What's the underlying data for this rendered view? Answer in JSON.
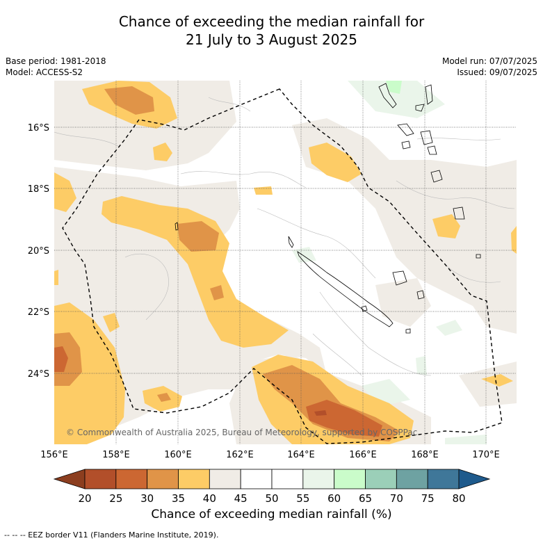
{
  "title": {
    "line1": "Chance of exceeding the median rainfall for",
    "line2": "21 July to 3 August 2025"
  },
  "meta_left": {
    "base_period": "Base period: 1981-2018",
    "model": "Model: ACCESS-S2"
  },
  "meta_right": {
    "model_run": "Model run: 07/07/2025",
    "issued": "Issued: 09/07/2025"
  },
  "map": {
    "lon_range": [
      156,
      171
    ],
    "lat_range": [
      -26.3,
      -14.4
    ],
    "lon_ticks": [
      {
        "value": 156,
        "label": "156°E"
      },
      {
        "value": 158,
        "label": "158°E"
      },
      {
        "value": 160,
        "label": "160°E"
      },
      {
        "value": 162,
        "label": "162°E"
      },
      {
        "value": 164,
        "label": "164°E"
      },
      {
        "value": 166,
        "label": "166°E"
      },
      {
        "value": 168,
        "label": "168°E"
      },
      {
        "value": 170,
        "label": "170°E"
      }
    ],
    "lat_ticks": [
      {
        "value": -16,
        "label": "16°S"
      },
      {
        "value": -18,
        "label": "18°S"
      },
      {
        "value": -20,
        "label": "20°S"
      },
      {
        "value": -22,
        "label": "22°S"
      },
      {
        "value": -24,
        "label": "24°S"
      }
    ],
    "copyright": "© Commonwealth of Australia 2025, Bureau of Meteorology, supported by COSPPac"
  },
  "colorbar": {
    "label": "Chance of exceeding median rainfall (%)",
    "ticks": [
      "20",
      "25",
      "30",
      "35",
      "40",
      "45",
      "50",
      "55",
      "60",
      "65",
      "70",
      "75",
      "80"
    ],
    "under_color": "#8c3e1f",
    "over_color": "#1e5a8c",
    "colors": [
      "#b24f2a",
      "#cc6732",
      "#e09448",
      "#fdcc66",
      "#f0ece6",
      "#ffffff",
      "#ffffff",
      "#eaf5ea",
      "#cafcca",
      "#9bcfb8",
      "#6ea2a2",
      "#3f7799"
    ]
  },
  "footnote": "--  --  -- EEZ border V11 (Flanders Marine Institute, 2019)."
}
